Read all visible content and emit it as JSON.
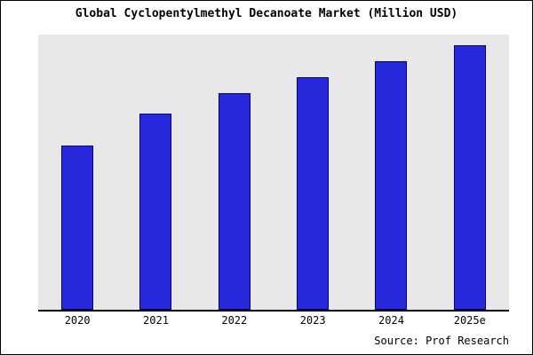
{
  "chart_data": {
    "type": "bar",
    "title": "Global Cyclopentylmethyl Decanoate Market (Million USD)",
    "categories": [
      "2020",
      "2021",
      "2022",
      "2023",
      "2024",
      "2025e"
    ],
    "values": [
      62,
      74,
      82,
      88,
      94,
      100
    ],
    "xlabel": "",
    "ylabel": "",
    "ylim": [
      0,
      104
    ],
    "grid": false,
    "legend": "none",
    "source": "Source: Prof Research",
    "bar_color": "#2828dd",
    "bar_border_color": "#000080",
    "plot_background": "#e8e8e8"
  }
}
